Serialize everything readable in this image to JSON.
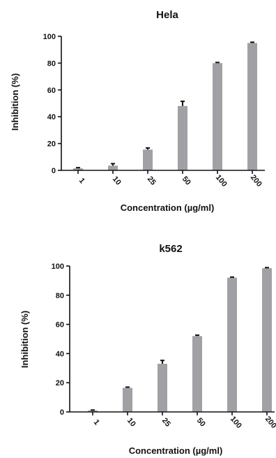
{
  "chart_data": [
    {
      "type": "bar",
      "title": "Hela",
      "xlabel": "Concentration (µg/ml)",
      "ylabel": "Inhibition (%)",
      "ylim": [
        0,
        100
      ],
      "yticks": [
        0,
        20,
        40,
        60,
        80,
        100
      ],
      "categories": [
        "1",
        "10",
        "25",
        "50",
        "100",
        "200"
      ],
      "values": [
        1.5,
        3.5,
        15.5,
        48,
        80,
        95
      ],
      "errors": [
        0.5,
        1.5,
        1.2,
        3.5,
        0.5,
        0.6
      ],
      "grid": false,
      "bar_color": "#a0a0a5"
    },
    {
      "type": "bar",
      "title": "k562",
      "xlabel": "Concentration (µg/ml)",
      "ylabel": "Inhibition (%)",
      "ylim": [
        0,
        100
      ],
      "yticks": [
        0,
        20,
        40,
        60,
        80,
        100
      ],
      "categories": [
        "1",
        "10",
        "25",
        "50",
        "100",
        "200"
      ],
      "values": [
        1,
        16.5,
        33,
        52,
        92,
        98.5
      ],
      "errors": [
        0.3,
        0.5,
        2.3,
        0.6,
        0.4,
        0.4
      ],
      "grid": false,
      "bar_color": "#a0a0a5"
    }
  ]
}
